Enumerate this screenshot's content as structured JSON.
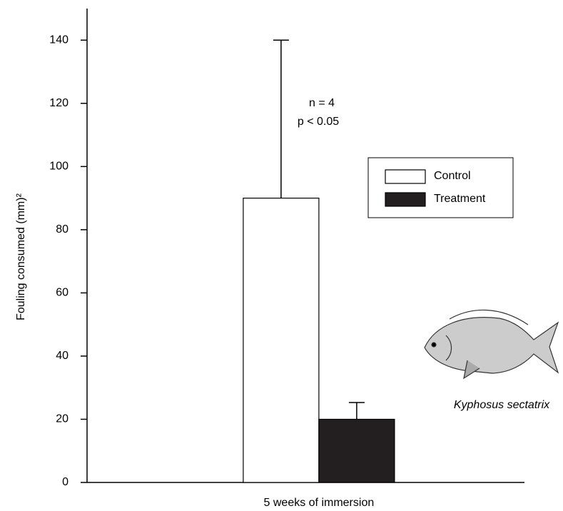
{
  "chart_data": {
    "type": "bar",
    "y_label": "Fouling consumed (mm)²",
    "categories": [
      "5 weeks of immersion"
    ],
    "series": [
      {
        "name": "Control",
        "color": "#ffffff",
        "values": [
          90
        ],
        "errors": [
          50
        ]
      },
      {
        "name": "Treatment",
        "color": "#231f20",
        "values": [
          20
        ],
        "errors": [
          5.3
        ]
      }
    ],
    "ylim": [
      0,
      150
    ],
    "yticks": [
      0,
      20,
      40,
      60,
      80,
      100,
      120,
      140
    ],
    "annotations": [
      "n =  4",
      "p <  0.05"
    ],
    "image_caption": "Kyphosus sectatrix"
  }
}
